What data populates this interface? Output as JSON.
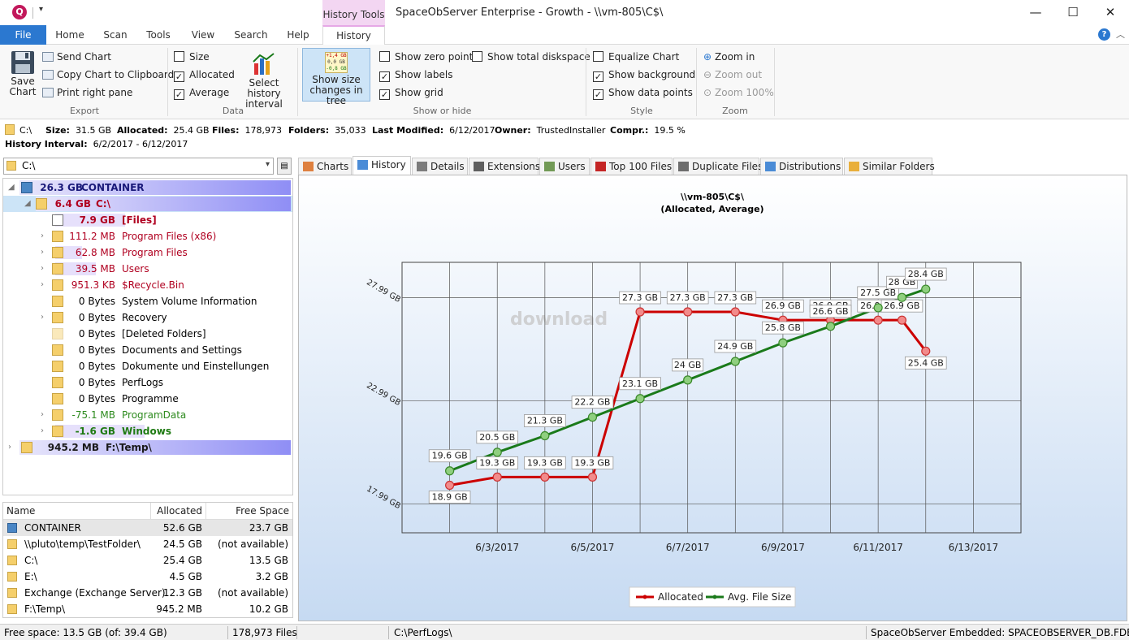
{
  "app": {
    "window_title": "SpaceObServer Enterprise - Growth - \\\\vm-805\\C$\\",
    "context_tab": "History Tools",
    "qat_arrow": "▾",
    "min": "—",
    "max": "☐",
    "close": "✕",
    "help": "?",
    "collapse": "︿"
  },
  "ribbon_tabs": [
    "File",
    "Home",
    "Scan",
    "Tools",
    "View",
    "Search",
    "Help",
    "History"
  ],
  "ribbon": {
    "export": {
      "save_chart": "Save Chart",
      "send_chart": "Send Chart",
      "copy_chart": "Copy Chart to Clipboard",
      "print_pane": "Print right pane",
      "label": "Export"
    },
    "data": {
      "size": "Size",
      "allocated": "Allocated",
      "average": "Average",
      "select_interval": "Select history interval",
      "label": "Data"
    },
    "show_changes": {
      "label": "Show size changes in tree",
      "icon_text": [
        "+1,4 GB",
        "0,0 GB",
        "-0,8 GB"
      ]
    },
    "show_hide": {
      "zero_point": "Show zero point",
      "total_diskspace": "Show total diskspace",
      "labels": "Show labels",
      "grid": "Show grid",
      "label": "Show or hide"
    },
    "style": {
      "equalize": "Equalize Chart",
      "background": "Show background",
      "data_points": "Show data points",
      "label": "Style"
    },
    "zoom": {
      "zoom_in": "Zoom in",
      "zoom_out": "Zoom out",
      "zoom_100": "Zoom 100%",
      "label": "Zoom"
    },
    "checks": {
      "size": false,
      "allocated": true,
      "average": true,
      "zero_point": false,
      "total_diskspace": false,
      "labels": true,
      "grid": true,
      "equalize": false,
      "background": true,
      "data_points": true
    }
  },
  "info": {
    "path": "C:\\",
    "size_label": "Size:",
    "size": "31.5 GB",
    "alloc_label": "Allocated:",
    "alloc": "25.4 GB",
    "files_label": "Files:",
    "files": "178,973",
    "folders_label": "Folders:",
    "folders": "35,033",
    "modified_label": "Last Modified:",
    "modified": "6/12/2017",
    "owner_label": "Owner:",
    "owner": "TrustedInstaller",
    "compr_label": "Compr.:",
    "compr": "19.5 %",
    "interval_label": "History Interval:",
    "interval": "6/2/2017 - 6/12/2017"
  },
  "path_combo": "C:\\",
  "tree": [
    {
      "size": "26.3 GB",
      "name": "CONTAINER",
      "arrow": "◢",
      "icon": "net",
      "bold": true,
      "color": "#1a1a7a",
      "band": true
    },
    {
      "size": "6.4 GB",
      "name": "C:\\",
      "arrow": "◢",
      "icon": "folder",
      "bold": true,
      "color": "#b00020",
      "band": true,
      "selected": true
    },
    {
      "size": "7.9 GB",
      "name": "[Files]",
      "arrow": "",
      "icon": "file",
      "bold": true,
      "color": "#b00020",
      "bar": 0.78
    },
    {
      "size": "111.2 MB",
      "name": "Program Files (x86)",
      "arrow": "›",
      "icon": "folder",
      "color": "#b00020",
      "bar": 0.0
    },
    {
      "size": "62.8 MB",
      "name": "Program Files",
      "arrow": "›",
      "icon": "folder",
      "color": "#b00020",
      "bar": 0.3
    },
    {
      "size": "39.5 MB",
      "name": "Users",
      "arrow": "›",
      "icon": "folder",
      "color": "#b00020",
      "bar": 0.45
    },
    {
      "size": "951.3 KB",
      "name": "$Recycle.Bin",
      "arrow": "›",
      "icon": "folder",
      "color": "#b00020"
    },
    {
      "size": "0 Bytes",
      "name": "System Volume Information",
      "arrow": "",
      "icon": "folder",
      "color": "#000"
    },
    {
      "size": "0 Bytes",
      "name": "Recovery",
      "arrow": "›",
      "icon": "folder",
      "color": "#000"
    },
    {
      "size": "0 Bytes",
      "name": "[Deleted Folders]",
      "arrow": "",
      "icon": "folder",
      "color": "#000",
      "faded": true
    },
    {
      "size": "0 Bytes",
      "name": "Documents and Settings",
      "arrow": "",
      "icon": "folder",
      "color": "#000"
    },
    {
      "size": "0 Bytes",
      "name": "Dokumente und Einstellungen",
      "arrow": "",
      "icon": "folder",
      "color": "#000"
    },
    {
      "size": "0 Bytes",
      "name": "PerfLogs",
      "arrow": "",
      "icon": "folder",
      "color": "#000"
    },
    {
      "size": "0 Bytes",
      "name": "Programme",
      "arrow": "",
      "icon": "folder",
      "color": "#000"
    },
    {
      "size": "-75.1 MB",
      "name": "ProgramData",
      "arrow": "›",
      "icon": "folder",
      "color": "#2e8b1f"
    },
    {
      "size": "-1.6 GB",
      "name": "Windows",
      "arrow": "›",
      "icon": "folder",
      "color": "#1e7a12",
      "bold": true,
      "bar": 1.0
    },
    {
      "size": "945.2 MB",
      "name": "F:\\Temp\\",
      "arrow": "›",
      "icon": "folder",
      "bold": true,
      "color": "#1a1a1a",
      "band": true,
      "root": true
    }
  ],
  "list": {
    "headers": [
      "Name",
      "Allocated",
      "Free Space"
    ],
    "rows": [
      {
        "name": "CONTAINER",
        "alloc": "52.6 GB",
        "free": "23.7 GB",
        "icon": "net",
        "selected": true
      },
      {
        "name": "\\\\pluto\\temp\\TestFolder\\",
        "alloc": "24.5 GB",
        "free": "(not available)",
        "icon": "folder"
      },
      {
        "name": "C:\\",
        "alloc": "25.4 GB",
        "free": "13.5 GB",
        "icon": "folder"
      },
      {
        "name": "E:\\",
        "alloc": "4.5 GB",
        "free": "3.2 GB",
        "icon": "folder"
      },
      {
        "name": "Exchange (Exchange Server)",
        "alloc": "12.3 GB",
        "free": "(not available)",
        "icon": "folder"
      },
      {
        "name": "F:\\Temp\\",
        "alloc": "945.2 MB",
        "free": "10.2 GB",
        "icon": "folder"
      }
    ]
  },
  "content_tabs": [
    "Charts",
    "History",
    "Details",
    "Extensions",
    "Users",
    "Top 100 Files",
    "Duplicate Files",
    "Distributions",
    "Similar Folders"
  ],
  "status": {
    "free_space": "Free space: 13.5 GB (of: 39.4 GB)",
    "files": "178,973 Files",
    "path": "C:\\PerfLogs\\",
    "db": "SpaceObServer Embedded: SPACEOBSERVER_DB.FDB"
  },
  "watermark": "download",
  "colors": {
    "allocated": "#cc0000",
    "average": "#1a7a1a",
    "accent": "#2b78d0"
  },
  "chart_data": {
    "type": "line",
    "title": "\\\\vm-805\\C$\\",
    "subtitle": "(Allocated, Average)",
    "x_ticks": [
      "6/3/2017",
      "6/5/2017",
      "6/7/2017",
      "6/9/2017",
      "6/11/2017",
      "6/13/2017"
    ],
    "y_ticks": [
      "17.99 GB",
      "22.99 GB",
      "27.99 GB"
    ],
    "y_tick_values": [
      17.99,
      22.99,
      27.99
    ],
    "ylim": [
      16.6,
      29.7
    ],
    "xlim": [
      0,
      13
    ],
    "grid": true,
    "legend_position": "bottom-center",
    "series": [
      {
        "name": "Allocated",
        "color": "#cc0000",
        "x": [
          1,
          2,
          3,
          4,
          5,
          6,
          7,
          8,
          9,
          10,
          10.5,
          11
        ],
        "values": [
          18.9,
          19.3,
          19.3,
          19.3,
          27.3,
          27.3,
          27.3,
          26.9,
          26.9,
          26.9,
          26.9,
          25.4
        ],
        "labels": [
          "18.9 GB",
          "19.3 GB",
          "19.3 GB",
          "19.3 GB",
          "27.3 GB",
          "27.3 GB",
          "27.3 GB",
          "26.9 GB",
          "26.9 GB",
          "26.9 GB",
          "26.9 GB",
          "25.4 GB"
        ]
      },
      {
        "name": "Avg. File Size",
        "color": "#1a7a1a",
        "x": [
          1,
          2,
          3,
          4,
          5,
          6,
          7,
          8,
          9,
          10,
          10.5,
          11
        ],
        "values": [
          19.6,
          20.5,
          21.3,
          22.2,
          23.1,
          24.0,
          24.9,
          25.8,
          26.6,
          27.5,
          28.0,
          28.4
        ],
        "labels": [
          "19.6 GB",
          "20.5 GB",
          "21.3 GB",
          "22.2 GB",
          "23.1 GB",
          "24 GB",
          "24.9 GB",
          "25.8 GB",
          "26.6 GB",
          "27.5 GB",
          "28 GB",
          "28.4 GB"
        ]
      }
    ]
  }
}
